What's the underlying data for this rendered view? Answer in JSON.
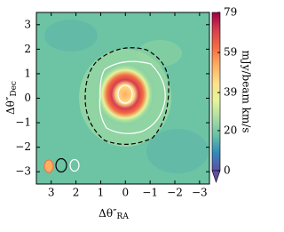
{
  "chart_data": {
    "type": "image",
    "xlabel": "Δθ″",
    "xlabel_sub": "RA",
    "ylabel": "Δθ″",
    "ylabel_sub": "Dec",
    "xlim": [
      3.6,
      -3.4
    ],
    "xticks": [
      3,
      2,
      1,
      0,
      {
        "value": -1,
        "label": "−1"
      },
      {
        "value": -2,
        "label": "−2"
      },
      {
        "value": -3,
        "label": "−3"
      }
    ],
    "ylim": [
      -3.5,
      3.5
    ],
    "yticks": [
      {
        "value": -3,
        "label": "−3"
      },
      {
        "value": -2,
        "label": "−2"
      },
      {
        "value": -1,
        "label": "−1"
      },
      0,
      1,
      2,
      3
    ],
    "colorbar": {
      "label": "mJy/beam km/s",
      "lim": [
        0,
        79
      ],
      "ticks": [
        0,
        20,
        39,
        59,
        79
      ],
      "colormap": [
        "#5e4fa2",
        "#3288bd",
        "#66c2a5",
        "#abdda4",
        "#e6f598",
        "#fee08b",
        "#fdae61",
        "#f46d43",
        "#d53e4f",
        "#9e0142"
      ]
    }
  }
}
